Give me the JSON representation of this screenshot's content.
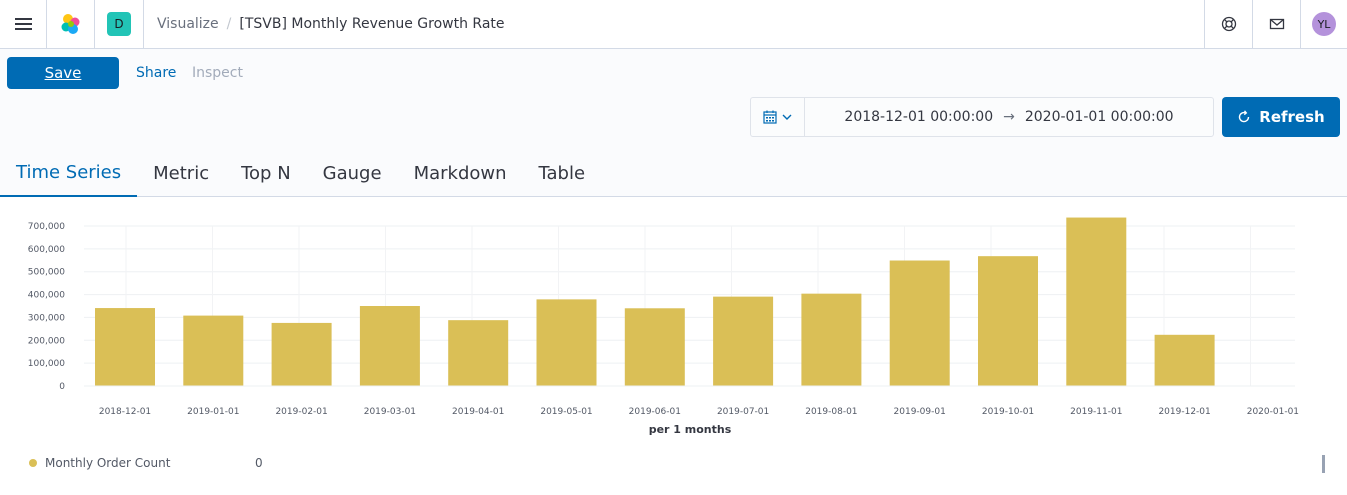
{
  "header": {
    "space_initial": "D",
    "breadcrumbs": [
      "Visualize",
      "[TSVB] Monthly Revenue Growth Rate"
    ],
    "avatar_initials": "YL",
    "icons": [
      "menu-icon",
      "elastic-logo-icon",
      "help-icon",
      "mail-icon"
    ]
  },
  "toolbar": {
    "save_label": "Save",
    "share_label": "Share",
    "inspect_label": "Inspect"
  },
  "datepicker": {
    "start": "2018-12-01 00:00:00",
    "arrow": "→",
    "end": "2020-01-01 00:00:00"
  },
  "refresh_label": "Refresh",
  "tabs": [
    {
      "label": "Time Series",
      "active": true
    },
    {
      "label": "Metric",
      "active": false
    },
    {
      "label": "Top N",
      "active": false
    },
    {
      "label": "Gauge",
      "active": false
    },
    {
      "label": "Markdown",
      "active": false
    },
    {
      "label": "Table",
      "active": false
    }
  ],
  "chart_data": {
    "type": "bar",
    "categories": [
      "2018-12-01",
      "2019-01-01",
      "2019-02-01",
      "2019-03-01",
      "2019-04-01",
      "2019-05-01",
      "2019-06-01",
      "2019-07-01",
      "2019-08-01",
      "2019-09-01",
      "2019-10-01",
      "2019-11-01",
      "2019-12-01",
      "2020-01-01"
    ],
    "series": [
      {
        "name": "Monthly Order Count",
        "color": "#dabf56",
        "values": [
          341000,
          308000,
          276000,
          350000,
          288000,
          379000,
          340000,
          391000,
          404000,
          549000,
          568000,
          737000,
          224000,
          0
        ]
      }
    ],
    "xlabel": "per 1 months",
    "ylabel": "",
    "ylim": [
      0,
      700000
    ],
    "yticks": [
      0,
      100000,
      200000,
      300000,
      400000,
      500000,
      600000,
      700000
    ],
    "ytick_labels": [
      "0",
      "100,000",
      "200,000",
      "300,000",
      "400,000",
      "500,000",
      "600,000",
      "700,000"
    ],
    "grid": true
  },
  "legend": {
    "label": "Monthly Order Count",
    "value": "0",
    "color": "#dabf56"
  }
}
